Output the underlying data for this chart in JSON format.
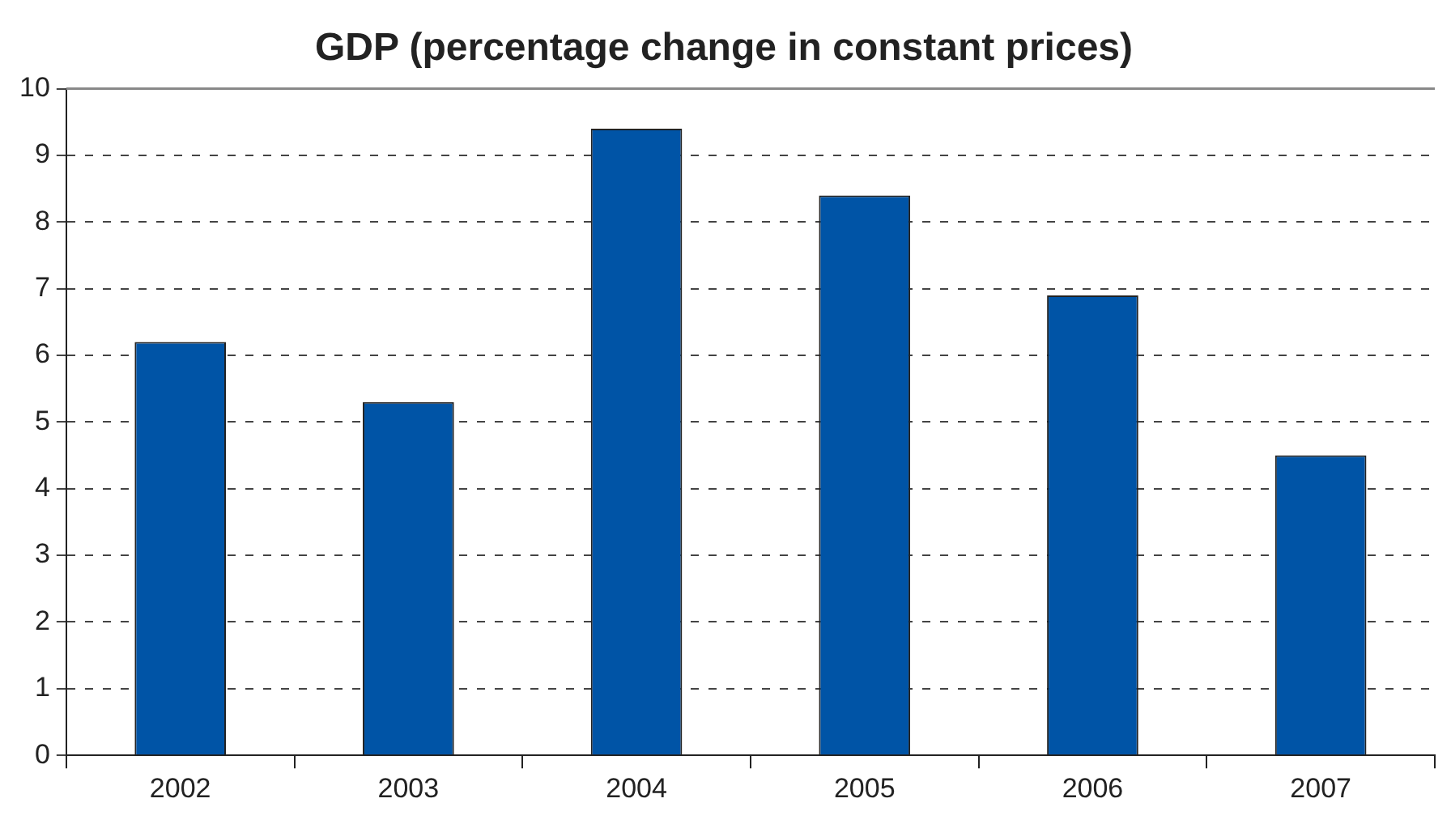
{
  "chart_data": {
    "type": "bar",
    "title": "GDP (percentage change in constant prices)",
    "categories": [
      "2002",
      "2003",
      "2004",
      "2005",
      "2006",
      "2007"
    ],
    "values": [
      6.2,
      5.3,
      9.4,
      8.4,
      6.9,
      4.5
    ],
    "color": "#0054a6",
    "ylim": [
      0,
      10
    ],
    "yticks": [
      0,
      1,
      2,
      3,
      4,
      5,
      6,
      7,
      8,
      9,
      10
    ],
    "grid": "y",
    "legend": false
  }
}
